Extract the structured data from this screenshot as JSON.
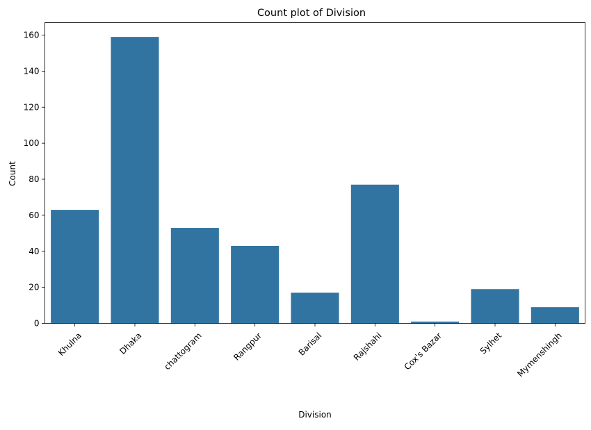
{
  "chart_data": {
    "type": "bar",
    "title": "Count plot of Division",
    "xlabel": "Division",
    "ylabel": "Count",
    "categories": [
      "Khulna",
      "Dhaka",
      "chattogram",
      "Rangpur",
      "Barisal",
      "Rajshahi",
      "Cox's Bazar",
      "Sylhet",
      "Mymenshingh"
    ],
    "values": [
      63,
      159,
      53,
      43,
      17,
      77,
      1,
      19,
      9
    ],
    "ylim": [
      0,
      166.95
    ],
    "yticks": [
      0,
      20,
      40,
      60,
      80,
      100,
      120,
      140,
      160
    ],
    "bar_color": "#3274a1",
    "grid": false,
    "legend": "none"
  }
}
